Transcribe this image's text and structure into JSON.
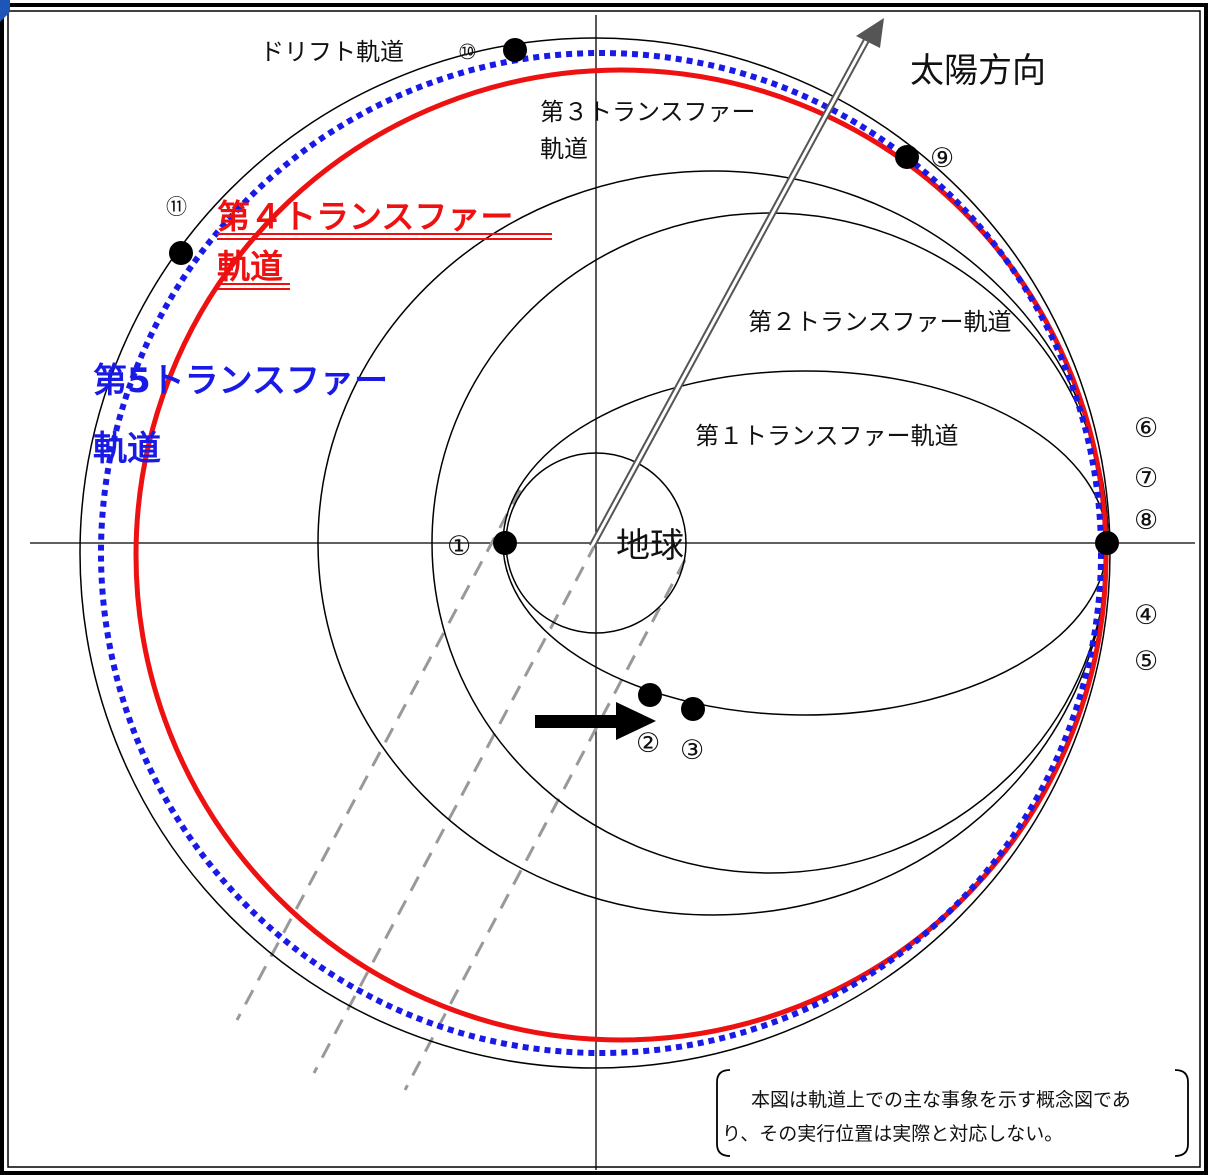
{
  "diagram": {
    "labels": {
      "sun_direction": "太陽方向",
      "earth": "地球",
      "drift_orbit": "ドリフト軌道",
      "transfer_1": "第１トランスファー軌道",
      "transfer_2": "第２トランスファー軌道",
      "transfer_3_line1": "第３トランスファー",
      "transfer_3_line2": "軌道",
      "transfer_4_line1": "第４トランスファー",
      "transfer_4_line2": "軌道",
      "transfer_5_line1": "第5トランスファー",
      "transfer_5_line2": "軌道"
    },
    "events": {
      "e1": "①",
      "e2": "②",
      "e3": "③",
      "e4": "④",
      "e5": "⑤",
      "e6": "⑥",
      "e7": "⑦",
      "e8": "⑧",
      "e9": "⑨",
      "e10": "⑩",
      "e11": "⑪"
    },
    "note": {
      "line1": "本図は軌道上での主な事象を示す概念図であ",
      "line2": "り、その実行位置は実際と対応しない。"
    },
    "colors": {
      "line": "#000000",
      "transfer_4": "#ee1111",
      "transfer_5": "#1a1ae6",
      "shadow": "#999999",
      "arrow": "#555555"
    }
  }
}
